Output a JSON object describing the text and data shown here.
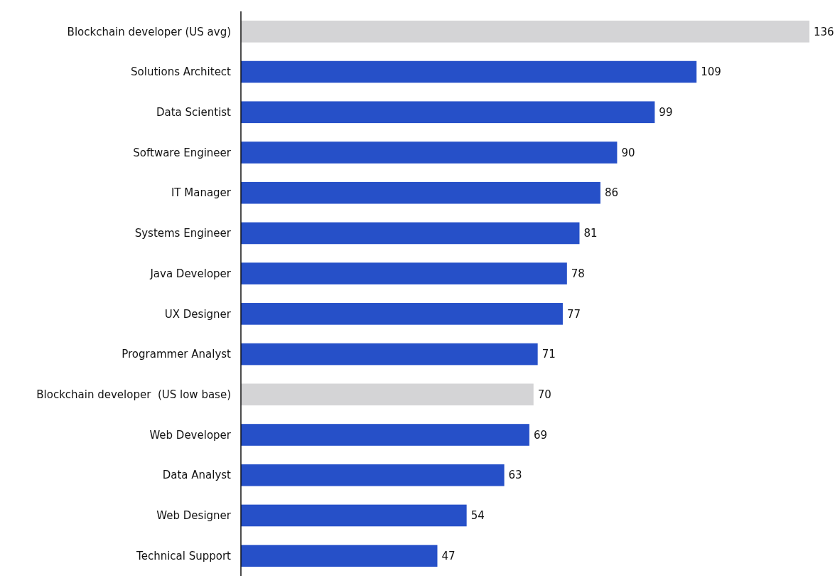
{
  "chart_data": {
    "type": "bar",
    "orientation": "horizontal",
    "categories": [
      "Blockchain developer (US avg)",
      "Solutions Architect",
      "Data Scientist",
      "Software Engineer",
      "IT Manager",
      "Systems Engineer",
      "Java Developer",
      "UX Designer",
      "Programmer Analyst",
      "Blockchain developer  (US low base)",
      "Web Developer",
      "Data Analyst",
      "Web Designer",
      "Technical Support"
    ],
    "values": [
      136,
      109,
      99,
      90,
      86,
      81,
      78,
      77,
      71,
      70,
      69,
      63,
      54,
      47
    ],
    "colors": [
      "#d4d4d6",
      "#2650c8",
      "#2650c8",
      "#2650c8",
      "#2650c8",
      "#2650c8",
      "#2650c8",
      "#2650c8",
      "#2650c8",
      "#d4d4d6",
      "#2650c8",
      "#2650c8",
      "#2650c8",
      "#2650c8"
    ],
    "data_labels": true
  }
}
